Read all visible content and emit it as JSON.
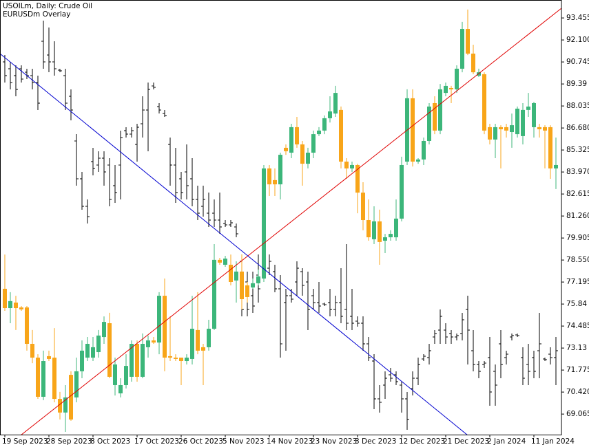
{
  "chart_data": {
    "type": "candlestick",
    "title": "USOILm, Daily:  Crude Oil",
    "categories": [
      "19 Sep 2023",
      null,
      null,
      null,
      null,
      null,
      null,
      null,
      "28 Sep 2023",
      null,
      null,
      null,
      null,
      null,
      null,
      null,
      "8 Oct 2023",
      null,
      null,
      null,
      null,
      null,
      null,
      null,
      "17 Oct 2023",
      null,
      null,
      null,
      null,
      null,
      null,
      null,
      "26 Oct 2023",
      null,
      null,
      null,
      null,
      null,
      null,
      null,
      "5 Nov 2023",
      null,
      null,
      null,
      null,
      null,
      null,
      null,
      "14 Nov 2023",
      null,
      null,
      null,
      null,
      null,
      null,
      null,
      "23 Nov 2023",
      null,
      null,
      null,
      null,
      null,
      null,
      null,
      "3 Dec 2023",
      null,
      null,
      null,
      null,
      null,
      null,
      null,
      "12 Dec 2023",
      null,
      null,
      null,
      null,
      null,
      null,
      null,
      "21 Dec 2023",
      null,
      null,
      null,
      null,
      null,
      null,
      null,
      "2 Jan 2024",
      null,
      null,
      null,
      null,
      null,
      null,
      null,
      "11 Jan 2024",
      null,
      null,
      null,
      null
    ],
    "ylim": [
      67.8,
      94.56
    ],
    "yticks": [
      69.065,
      {
        "value": 70.42,
        "label": "70.420"
      },
      71.775,
      73.13,
      74.485,
      75.84,
      77.195,
      {
        "value": 78.55,
        "label": "78.550"
      },
      79.905,
      {
        "value": 81.26,
        "label": "81.260"
      },
      82.615,
      {
        "value": 83.97,
        "label": "83.970"
      },
      85.325,
      {
        "value": 86.68,
        "label": "86.680"
      },
      88.035,
      89.39,
      90.745,
      {
        "value": 92.1,
        "label": "92.100"
      },
      93.455
    ],
    "y2lim": [
      1.04,
      1.1032
    ],
    "grid": false,
    "series": [
      {
        "type": "candlestick",
        "up_color": "#3cb67a",
        "down_color": "#f8a519",
        "open": [
          76.78,
          75.59,
          75.93,
          75.63,
          75.63,
          73.39,
          72.54,
          70.13,
          72.63,
          72.54,
          70.0,
          69.16,
          71.48,
          70.09,
          71.7,
          72.54,
          72.54,
          72.88,
          73.81,
          74.66,
          70.85,
          70.34,
          70.85,
          71.36,
          73.39,
          71.36,
          73.18,
          73.6,
          73.47,
          76.35,
          72.63,
          72.54,
          72.54,
          72.33,
          72.46,
          74.24,
          73.18,
          73.18,
          74.32,
          78.56,
          78.26,
          78.26,
          77.29,
          77.84,
          76.99,
          76.86,
          77.12,
          77.41,
          84.19,
          83.47,
          83.21,
          85.46,
          85.16,
          86.73,
          85.67,
          84.48,
          85.16,
          86.3,
          86.52,
          87.28,
          87.57,
          87.79,
          84.61,
          84.19,
          84.4,
          82.7,
          81.01,
          79.83,
          80.93,
          79.74,
          79.95,
          79.95,
          81.1,
          84.61,
          88.51,
          84.61,
          84.74,
          85.88,
          88.21,
          86.52,
          88.84,
          89.14,
          89.06,
          90.33,
          92.78,
          91.26,
          89.9,
          89.99,
          86.73,
          85.97,
          86.73,
          86.73,
          86.43,
          86.3,
          86.18,
          87.79,
          86.73,
          86.73,
          86.73,
          86.73,
          84.19
        ],
        "high": [
          78.89,
          76.57,
          76.35,
          75.72,
          75.72,
          74.24,
          72.75,
          72.97,
          72.97,
          74.36,
          70.43,
          70.85,
          71.7,
          72.54,
          73.6,
          73.81,
          73.81,
          74.24,
          75.08,
          75.3,
          72.54,
          71.27,
          72.75,
          73.6,
          73.6,
          74.03,
          73.9,
          73.81,
          76.57,
          77.41,
          75.08,
          72.75,
          72.54,
          72.75,
          76.35,
          76.57,
          73.39,
          74.87,
          79.53,
          78.68,
          78.81,
          78.89,
          78.47,
          78.89,
          77.2,
          77.41,
          77.96,
          84.4,
          84.4,
          84.19,
          85.16,
          85.67,
          86.94,
          87.36,
          85.88,
          85.46,
          86.52,
          86.73,
          87.45,
          88.63,
          89.27,
          88.0,
          84.82,
          84.61,
          84.48,
          83.34,
          82.28,
          81.86,
          81.65,
          80.16,
          80.38,
          82.28,
          84.91,
          89.06,
          89.06,
          84.82,
          86.09,
          88.21,
          88.63,
          89.39,
          89.48,
          89.27,
          90.54,
          93.21,
          93.97,
          91.81,
          90.33,
          90.11,
          86.94,
          86.94,
          86.85,
          86.94,
          87.57,
          88.0,
          88.21,
          88.84,
          88.29,
          86.94,
          86.85,
          86.85,
          86.09
        ],
        "low": [
          75.42,
          74.66,
          74.24,
          75.42,
          72.97,
          72.2,
          70.0,
          69.92,
          72.33,
          69.79,
          68.73,
          67.97,
          68.65,
          69.79,
          71.27,
          72.33,
          72.33,
          72.54,
          73.39,
          71.27,
          70.21,
          70.09,
          70.64,
          71.06,
          71.06,
          71.27,
          72.54,
          73.39,
          72.75,
          71.7,
          72.33,
          72.33,
          70.85,
          72.12,
          72.12,
          72.75,
          70.85,
          72.97,
          74.24,
          78.26,
          78.13,
          76.99,
          75.93,
          75.51,
          75.93,
          76.78,
          76.99,
          77.2,
          82.49,
          82.49,
          82.28,
          85.03,
          84.82,
          85.46,
          83.13,
          84.19,
          84.82,
          86.18,
          86.3,
          87.02,
          87.36,
          84.19,
          83.55,
          83.97,
          81.43,
          80.38,
          79.74,
          79.53,
          78.26,
          78.98,
          79.74,
          79.74,
          80.93,
          84.4,
          84.31,
          84.48,
          84.4,
          85.67,
          86.3,
          86.3,
          88.63,
          88.21,
          88.84,
          90.11,
          91.17,
          89.99,
          89.82,
          86.3,
          85.67,
          84.82,
          84.19,
          86.09,
          85.46,
          86.09,
          85.67,
          87.36,
          86.09,
          86.09,
          84.19,
          83.55,
          82.92
        ],
        "close": [
          75.59,
          76.02,
          75.59,
          75.51,
          73.39,
          72.54,
          70.13,
          72.33,
          72.46,
          70.0,
          69.16,
          70.09,
          68.73,
          71.7,
          72.97,
          73.39,
          73.18,
          73.9,
          74.74,
          71.36,
          72.12,
          70.85,
          72.03,
          73.39,
          71.36,
          73.39,
          73.6,
          73.47,
          76.35,
          72.54,
          72.54,
          72.46,
          72.33,
          72.54,
          74.32,
          72.97,
          72.97,
          74.32,
          78.56,
          78.39,
          78.64,
          77.2,
          77.84,
          76.14,
          76.27,
          77.12,
          77.54,
          84.19,
          83.21,
          83.21,
          85.03,
          85.25,
          86.73,
          85.67,
          84.48,
          85.16,
          86.3,
          86.52,
          87.28,
          87.7,
          88.84,
          84.61,
          84.19,
          84.4,
          82.7,
          81.01,
          79.95,
          80.93,
          79.66,
          79.95,
          80.16,
          81.1,
          84.4,
          88.51,
          84.61,
          84.74,
          85.88,
          88.0,
          86.52,
          89.06,
          89.27,
          89.06,
          90.33,
          92.78,
          91.26,
          90.11,
          90.11,
          86.52,
          85.97,
          86.73,
          86.6,
          86.52,
          86.85,
          87.87,
          87.79,
          88.0,
          88.21,
          86.6,
          86.52,
          84.19,
          84.4
        ]
      },
      {
        "name": "EURUSDm Overlay",
        "type": "ohlc",
        "axis": "y2",
        "color": "#000000",
        "open": [
          1.0942,
          1.0932,
          1.0922,
          1.0932,
          1.0927,
          1.0922,
          1.0912,
          1.0972,
          1.0952,
          1.0942,
          1.093,
          1.0922,
          1.0892,
          1.0827,
          1.0772,
          1.0732,
          1.0797,
          1.0792,
          1.0802,
          1.0792,
          1.0762,
          1.0792,
          1.0842,
          1.0837,
          1.0822,
          1.0852,
          1.0872,
          1.0907,
          1.0877,
          1.0867,
          1.0822,
          1.0792,
          1.0772,
          1.0782,
          1.0772,
          1.0742,
          1.0732,
          1.0722,
          1.0722,
          1.0712,
          1.0707,
          1.0705,
          1.0702,
          1.0652,
          1.0622,
          1.0602,
          1.0632,
          1.0647,
          1.0642,
          1.0637,
          1.0612,
          1.0592,
          1.0602,
          1.0622,
          1.0637,
          1.0622,
          1.0602,
          1.0592,
          1.059,
          1.0592,
          1.0582,
          1.0592,
          1.0582,
          1.0572,
          1.0565,
          1.0562,
          1.0532,
          1.0507,
          1.0452,
          1.0472,
          1.0487,
          1.0487,
          1.0472,
          1.0452,
          1.0467,
          1.0482,
          1.051,
          1.0512,
          1.0542,
          1.0552,
          1.0552,
          1.0547,
          1.0542,
          1.0547,
          1.0582,
          1.0522,
          1.0502,
          1.0502,
          1.0512,
          1.0492,
          1.0532,
          1.0512,
          1.0542,
          1.0545,
          1.0512,
          1.0502,
          1.0512,
          1.0522,
          1.051,
          1.0517,
          1.0512
        ],
        "high": [
          1.0952,
          1.0942,
          1.0937,
          1.0937,
          1.0932,
          1.0932,
          1.0922,
          1.1002,
          1.0992,
          1.0972,
          1.0932,
          1.0932,
          1.0902,
          1.0837,
          1.0782,
          1.0742,
          1.0817,
          1.0812,
          1.0812,
          1.0802,
          1.0792,
          1.0842,
          1.0847,
          1.0847,
          1.0852,
          1.0892,
          1.0912,
          1.0912,
          1.0882,
          1.0872,
          1.0832,
          1.0817,
          1.0782,
          1.0822,
          1.0802,
          1.0762,
          1.0762,
          1.0752,
          1.0742,
          1.0752,
          1.0712,
          1.0712,
          1.0707,
          1.0662,
          1.0637,
          1.0637,
          1.0662,
          1.0652,
          1.0662,
          1.0647,
          1.0632,
          1.0612,
          1.0612,
          1.0652,
          1.0642,
          1.0637,
          1.0612,
          1.0622,
          1.0592,
          1.0612,
          1.0602,
          1.0642,
          1.0677,
          1.0612,
          1.0572,
          1.0572,
          1.0542,
          1.0517,
          1.0472,
          1.0492,
          1.0497,
          1.0492,
          1.0477,
          1.0462,
          1.0492,
          1.0512,
          1.0517,
          1.0532,
          1.0552,
          1.0582,
          1.0562,
          1.0552,
          1.0547,
          1.0577,
          1.0602,
          1.0552,
          1.0507,
          1.0507,
          1.0542,
          1.0502,
          1.0552,
          1.0522,
          1.0547,
          1.0547,
          1.0527,
          1.0532,
          1.0522,
          1.0577,
          1.0512,
          1.0527,
          1.0542
        ],
        "low": [
          1.0912,
          1.0902,
          1.0892,
          1.0912,
          1.0917,
          1.0902,
          1.0872,
          1.0932,
          1.0927,
          1.0922,
          1.0927,
          1.0872,
          1.0857,
          1.0762,
          1.0727,
          1.0707,
          1.0777,
          1.0782,
          1.0762,
          1.0732,
          1.0737,
          1.0742,
          1.0832,
          1.0832,
          1.0797,
          1.0832,
          1.0812,
          1.0902,
          1.0867,
          1.0862,
          1.0762,
          1.0737,
          1.0742,
          1.0742,
          1.0732,
          1.0712,
          1.0717,
          1.0702,
          1.0702,
          1.0692,
          1.0702,
          1.0702,
          1.0687,
          1.0572,
          1.0572,
          1.0577,
          1.0592,
          1.0632,
          1.0632,
          1.0607,
          1.0512,
          1.0522,
          1.0592,
          1.0602,
          1.0602,
          1.0552,
          1.0582,
          1.0577,
          1.0587,
          1.0572,
          1.0572,
          1.0562,
          1.0552,
          1.0552,
          1.0557,
          1.0522,
          1.0507,
          1.0437,
          1.0432,
          1.0452,
          1.0477,
          1.0472,
          1.0432,
          1.0407,
          1.0457,
          1.0472,
          1.0507,
          1.0502,
          1.0532,
          1.0532,
          1.0532,
          1.0532,
          1.0537,
          1.0537,
          1.0502,
          1.0492,
          1.0482,
          1.0497,
          1.0442,
          1.0442,
          1.0482,
          1.0502,
          1.0537,
          1.0542,
          1.0472,
          1.0472,
          1.0482,
          1.0482,
          1.0507,
          1.0502,
          1.0472
        ],
        "close": [
          1.0922,
          1.0912,
          1.0902,
          1.0917,
          1.0922,
          1.0912,
          1.0882,
          1.0942,
          1.0942,
          1.0932,
          1.0929,
          1.0882,
          1.0872,
          1.0772,
          1.0732,
          1.0717,
          1.0787,
          1.0802,
          1.0782,
          1.0742,
          1.0752,
          1.0832,
          1.0837,
          1.0842,
          1.0847,
          1.0872,
          1.0902,
          1.0905,
          1.0872,
          1.0864,
          1.0792,
          1.0752,
          1.0752,
          1.0762,
          1.0742,
          1.0722,
          1.0742,
          1.0712,
          1.0712,
          1.0702,
          1.0705,
          1.0708,
          1.0692,
          1.0582,
          1.0582,
          1.0587,
          1.0612,
          1.0637,
          1.0652,
          1.0612,
          1.0532,
          1.0602,
          1.0597,
          1.0642,
          1.0617,
          1.0582,
          1.0592,
          1.0587,
          1.0589,
          1.0582,
          1.0592,
          1.0572,
          1.0562,
          1.0562,
          1.0562,
          1.0532,
          1.0512,
          1.0452,
          1.0447,
          1.0482,
          1.0482,
          1.0477,
          1.0452,
          1.0422,
          1.0482,
          1.0502,
          1.0514,
          1.0522,
          1.0547,
          1.0572,
          1.0542,
          1.0542,
          1.0544,
          1.0567,
          1.0552,
          1.0502,
          1.0492,
          1.0504,
          1.0462,
          1.0472,
          1.0502,
          1.0517,
          1.0544,
          1.0544,
          1.0482,
          1.0492,
          1.0492,
          1.0532,
          1.0509,
          1.0512,
          1.0522
        ]
      }
    ]
  }
}
